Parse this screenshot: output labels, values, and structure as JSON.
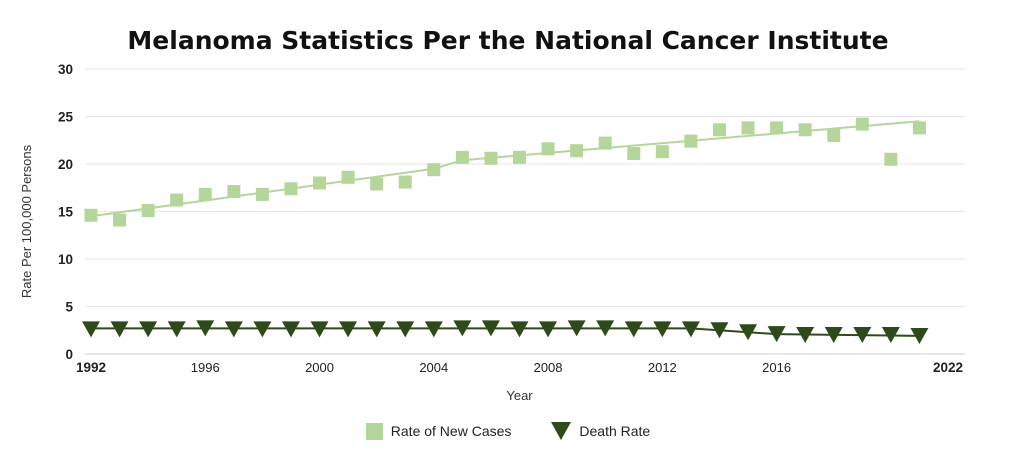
{
  "chart_data": {
    "type": "scatter",
    "title": "Melanoma Statistics Per the National Cancer Institute",
    "xlabel": "Year",
    "ylabel": "Rate Per 100,000 Persons",
    "xlim": [
      1992,
      2022
    ],
    "ylim": [
      0,
      30
    ],
    "xticks": [
      1992,
      1996,
      2000,
      2004,
      2008,
      2012,
      2016,
      2022
    ],
    "xticks_bold": [
      1992,
      2022
    ],
    "yticks": [
      0,
      5,
      10,
      15,
      20,
      25,
      30
    ],
    "grid": "horizontal",
    "legend_position": "bottom",
    "series": [
      {
        "name": "Rate of New Cases",
        "marker": "square",
        "color": "#b4d69a",
        "x": [
          1992,
          1993,
          1994,
          1995,
          1996,
          1997,
          1998,
          1999,
          2000,
          2001,
          2002,
          2003,
          2004,
          2005,
          2006,
          2007,
          2008,
          2009,
          2010,
          2011,
          2012,
          2013,
          2014,
          2015,
          2016,
          2017,
          2018,
          2019,
          2020,
          2021
        ],
        "y": [
          14.6,
          14.1,
          15.1,
          16.2,
          16.8,
          17.1,
          16.8,
          17.4,
          18.0,
          18.6,
          17.9,
          18.1,
          19.4,
          20.7,
          20.6,
          20.7,
          21.6,
          21.4,
          22.2,
          21.1,
          21.3,
          22.4,
          23.6,
          23.8,
          23.8,
          23.6,
          23.0,
          24.2,
          20.5,
          23.8
        ],
        "trend": {
          "x": [
            1992,
            2004,
            2005,
            2021
          ],
          "y": [
            14.5,
            19.5,
            20.4,
            24.5
          ]
        }
      },
      {
        "name": "Death Rate",
        "marker": "triangle-down",
        "color": "#2f4a1a",
        "x": [
          1992,
          1993,
          1994,
          1995,
          1996,
          1997,
          1998,
          1999,
          2000,
          2001,
          2002,
          2003,
          2004,
          2005,
          2006,
          2007,
          2008,
          2009,
          2010,
          2011,
          2012,
          2013,
          2014,
          2015,
          2016,
          2017,
          2018,
          2019,
          2020,
          2021
        ],
        "y": [
          2.7,
          2.7,
          2.7,
          2.7,
          2.8,
          2.7,
          2.7,
          2.7,
          2.7,
          2.7,
          2.7,
          2.7,
          2.7,
          2.8,
          2.8,
          2.7,
          2.7,
          2.8,
          2.8,
          2.7,
          2.7,
          2.7,
          2.6,
          2.4,
          2.2,
          2.1,
          2.1,
          2.1,
          2.1,
          2.0
        ],
        "trend": {
          "x": [
            1992,
            2013,
            2016,
            2021
          ],
          "y": [
            2.7,
            2.7,
            2.1,
            1.9
          ]
        }
      }
    ]
  }
}
